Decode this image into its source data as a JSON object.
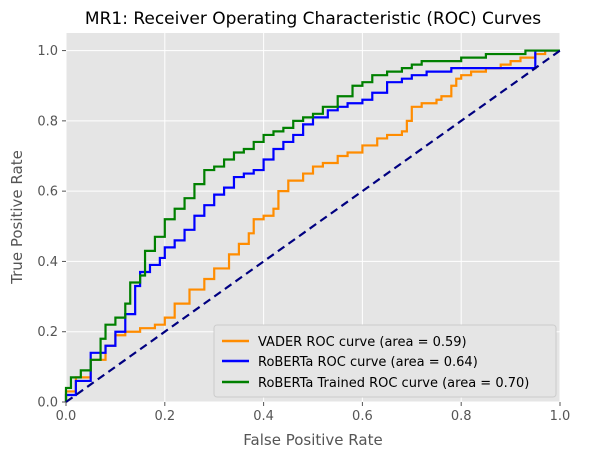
{
  "chart_data": {
    "type": "line",
    "title": "MR1: Receiver Operating Characteristic (ROC) Curves",
    "xlabel": "False Positive Rate",
    "ylabel": "True Positive Rate",
    "xlim": [
      0,
      1
    ],
    "ylim": [
      0,
      1.05
    ],
    "xticks": [
      0,
      0.2,
      0.4,
      0.6,
      0.8,
      1.0
    ],
    "xtick_labels": [
      "0.0",
      "0.2",
      "0.4",
      "0.6",
      "0.8",
      "1.0"
    ],
    "yticks": [
      0,
      0.2,
      0.4,
      0.6,
      0.8,
      1.0
    ],
    "ytick_labels": [
      "0.0",
      "0.2",
      "0.4",
      "0.6",
      "0.8",
      "1.0"
    ],
    "grid": true,
    "legend_position": "lower-right",
    "series": [
      {
        "name": "VADER ROC curve (area = 0.59)",
        "color": "#ff8c00",
        "x": [
          0,
          0.02,
          0.05,
          0.08,
          0.1,
          0.12,
          0.15,
          0.18,
          0.2,
          0.22,
          0.25,
          0.28,
          0.3,
          0.33,
          0.35,
          0.37,
          0.38,
          0.4,
          0.42,
          0.43,
          0.45,
          0.48,
          0.5,
          0.52,
          0.55,
          0.57,
          0.6,
          0.63,
          0.65,
          0.68,
          0.69,
          0.7,
          0.72,
          0.75,
          0.76,
          0.78,
          0.79,
          0.8,
          0.82,
          0.85,
          0.88,
          0.9,
          0.92,
          0.95,
          0.97,
          1.0
        ],
        "y": [
          0,
          0.03,
          0.07,
          0.12,
          0.16,
          0.19,
          0.2,
          0.21,
          0.22,
          0.24,
          0.28,
          0.32,
          0.35,
          0.38,
          0.42,
          0.45,
          0.48,
          0.52,
          0.53,
          0.55,
          0.6,
          0.63,
          0.65,
          0.67,
          0.68,
          0.7,
          0.71,
          0.73,
          0.75,
          0.76,
          0.77,
          0.8,
          0.84,
          0.85,
          0.86,
          0.87,
          0.9,
          0.92,
          0.93,
          0.94,
          0.95,
          0.96,
          0.97,
          0.98,
          0.99,
          1.0
        ]
      },
      {
        "name": "RoBERTa ROC curve (area = 0.64)",
        "color": "#0000ff",
        "x": [
          0,
          0.02,
          0.05,
          0.08,
          0.1,
          0.12,
          0.14,
          0.15,
          0.17,
          0.19,
          0.2,
          0.22,
          0.24,
          0.26,
          0.28,
          0.3,
          0.32,
          0.34,
          0.36,
          0.38,
          0.4,
          0.42,
          0.44,
          0.46,
          0.48,
          0.5,
          0.53,
          0.55,
          0.57,
          0.6,
          0.62,
          0.65,
          0.68,
          0.7,
          0.73,
          0.75,
          0.78,
          0.8,
          0.85,
          0.9,
          0.95,
          1.0
        ],
        "y": [
          0,
          0.02,
          0.06,
          0.14,
          0.16,
          0.2,
          0.25,
          0.33,
          0.37,
          0.39,
          0.41,
          0.44,
          0.46,
          0.49,
          0.53,
          0.56,
          0.59,
          0.61,
          0.64,
          0.65,
          0.66,
          0.69,
          0.72,
          0.74,
          0.76,
          0.79,
          0.81,
          0.83,
          0.84,
          0.85,
          0.86,
          0.88,
          0.91,
          0.92,
          0.93,
          0.94,
          0.94,
          0.95,
          0.95,
          0.95,
          0.95,
          1.0
        ]
      },
      {
        "name": "RoBERTa Trained ROC curve (area = 0.70)",
        "color": "#008000",
        "x": [
          0,
          0.01,
          0.03,
          0.05,
          0.07,
          0.08,
          0.1,
          0.12,
          0.13,
          0.15,
          0.16,
          0.18,
          0.2,
          0.22,
          0.24,
          0.26,
          0.28,
          0.3,
          0.32,
          0.34,
          0.36,
          0.38,
          0.4,
          0.42,
          0.44,
          0.46,
          0.48,
          0.5,
          0.52,
          0.55,
          0.58,
          0.6,
          0.62,
          0.65,
          0.68,
          0.7,
          0.72,
          0.75,
          0.78,
          0.8,
          0.83,
          0.85,
          0.88,
          0.9,
          0.93,
          0.95,
          0.98,
          1.0
        ],
        "y": [
          0,
          0.04,
          0.07,
          0.09,
          0.12,
          0.18,
          0.22,
          0.24,
          0.28,
          0.34,
          0.36,
          0.43,
          0.47,
          0.52,
          0.55,
          0.58,
          0.62,
          0.66,
          0.67,
          0.69,
          0.71,
          0.72,
          0.74,
          0.76,
          0.77,
          0.78,
          0.8,
          0.81,
          0.82,
          0.84,
          0.87,
          0.9,
          0.91,
          0.93,
          0.94,
          0.95,
          0.96,
          0.97,
          0.97,
          0.97,
          0.98,
          0.98,
          0.99,
          0.99,
          0.99,
          1.0,
          1.0,
          1.0
        ]
      },
      {
        "name": "",
        "color": "#000080",
        "dashed": true,
        "x": [
          0,
          1
        ],
        "y": [
          0,
          1
        ]
      }
    ]
  }
}
